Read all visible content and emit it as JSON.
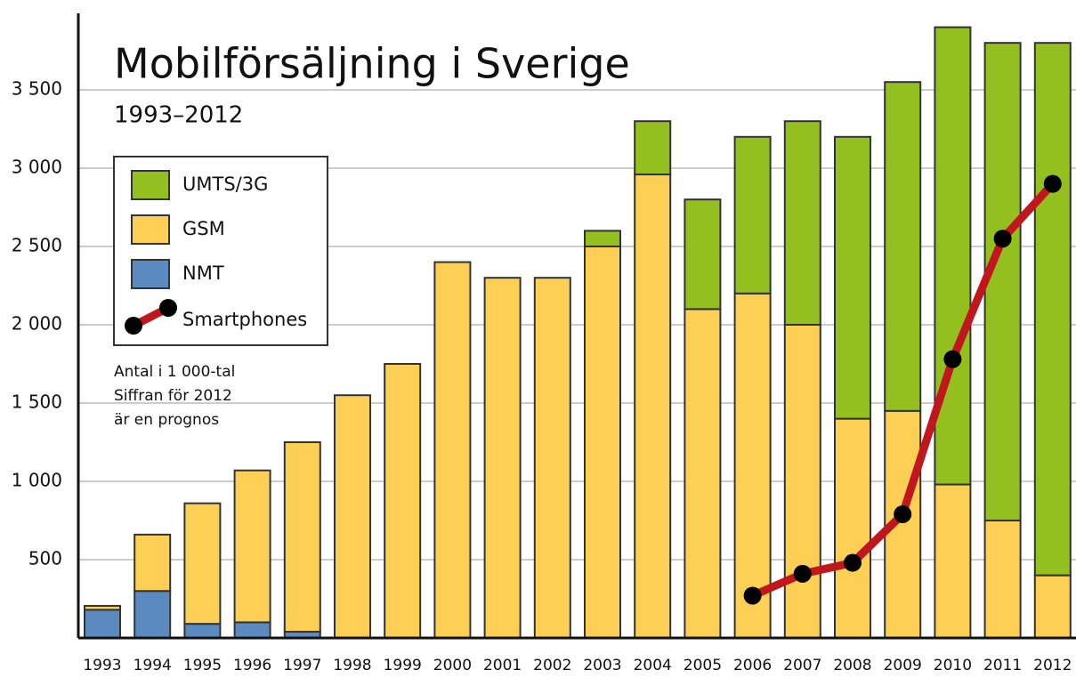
{
  "chart_data": {
    "type": "bar",
    "stacked": true,
    "title": "Mobilförsäljning i Sverige",
    "subtitle": "1993–2012",
    "annotations": [
      "Antal i 1 000-tal",
      "Siffran för 2012",
      "är en prognos"
    ],
    "categories": [
      "1993",
      "1994",
      "1995",
      "1996",
      "1997",
      "1998",
      "1999",
      "2000",
      "2001",
      "2002",
      "2003",
      "2004",
      "2005",
      "2006",
      "2007",
      "2008",
      "2009",
      "2010",
      "2011",
      "2012"
    ],
    "series": [
      {
        "name": "UMTS/3G",
        "color": "#93c01f",
        "values": [
          null,
          null,
          null,
          null,
          null,
          null,
          null,
          null,
          null,
          null,
          100,
          340,
          700,
          1000,
          1300,
          1800,
          2100,
          2920,
          3050,
          3400
        ]
      },
      {
        "name": "GSM",
        "color": "#fdd055",
        "values": [
          25,
          360,
          770,
          970,
          1210,
          1550,
          1750,
          2400,
          2300,
          2300,
          2500,
          2960,
          2100,
          2200,
          2000,
          1400,
          1450,
          980,
          750,
          400
        ]
      },
      {
        "name": "NMT",
        "color": "#5a8ac0",
        "values": [
          180,
          300,
          90,
          100,
          40,
          null,
          null,
          null,
          null,
          null,
          null,
          null,
          null,
          null,
          null,
          null,
          null,
          null,
          null,
          null
        ]
      },
      {
        "name": "Smartphones",
        "type": "line",
        "color": "#c0161d",
        "values": [
          null,
          null,
          null,
          null,
          null,
          null,
          null,
          null,
          null,
          null,
          null,
          null,
          null,
          270,
          410,
          480,
          790,
          1780,
          2550,
          2900
        ]
      }
    ],
    "ylim": [
      0,
      4000
    ],
    "yticks": [
      500,
      {
        "value": 1000,
        "label": "1 000"
      },
      {
        "value": 1500,
        "label": "1 500"
      },
      {
        "value": 2000,
        "label": "2 000"
      },
      {
        "value": 2500,
        "label": "2 500"
      },
      {
        "value": 3000,
        "label": "3 000"
      },
      {
        "value": 3500,
        "label": "3 500"
      }
    ],
    "grid": true
  }
}
